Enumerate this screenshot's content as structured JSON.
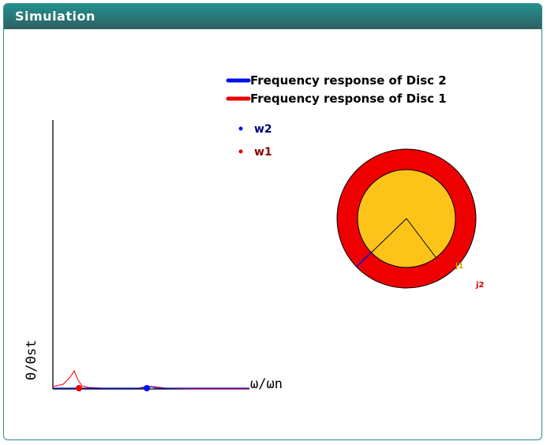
{
  "panel": {
    "title": "Simulation"
  },
  "legend": {
    "disc2": {
      "label": "Frequency response of Disc 2",
      "color": "#0011ee"
    },
    "disc1": {
      "label": "Frequency response of Disc 1",
      "color": "#ee0000"
    }
  },
  "markers_legend": {
    "w2": {
      "label": "w2",
      "color": "#0011ee",
      "text_color": "#000080"
    },
    "w1": {
      "label": "w1",
      "color": "#ee0000",
      "text_color": "#8b0000"
    }
  },
  "plot": {
    "ylabel": "Θ/Θst",
    "xlabel": "ω/ωn"
  },
  "discs": {
    "outer_color": "#ee0000",
    "inner_color": "#fcc419",
    "j1": {
      "label": "j1",
      "color": "#d4a800"
    },
    "j2": {
      "label": "j2",
      "color": "#cc0000"
    }
  }
}
